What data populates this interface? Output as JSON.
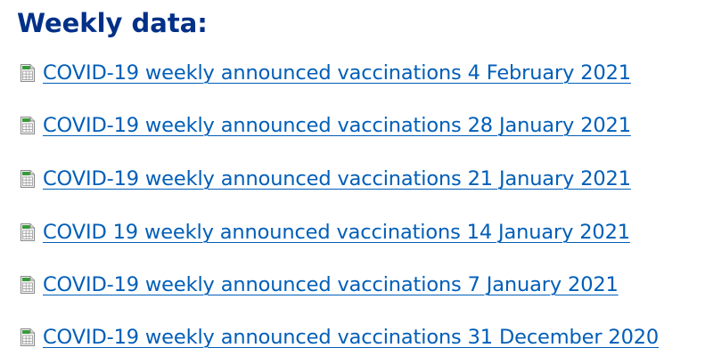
{
  "heading": "Weekly data:",
  "files": [
    {
      "label": "COVID-19 weekly announced vaccinations 4 February 2021",
      "icon": "spreadsheet-icon"
    },
    {
      "label": "COVID-19 weekly announced vaccinations 28 January 2021",
      "icon": "spreadsheet-icon"
    },
    {
      "label": "COVID-19 weekly announced vaccinations 21 January 2021",
      "icon": "spreadsheet-icon"
    },
    {
      "label": "COVID 19 weekly announced vaccinations 14 January 2021",
      "icon": "spreadsheet-icon"
    },
    {
      "label": "COVID-19 weekly announced vaccinations 7 January 2021",
      "icon": "spreadsheet-icon"
    },
    {
      "label": "COVID-19 weekly announced vaccinations 31 December 2020",
      "icon": "spreadsheet-icon"
    }
  ],
  "colors": {
    "heading": "#003087",
    "link": "#005eb8",
    "icon_green": "#3a9a3a"
  }
}
